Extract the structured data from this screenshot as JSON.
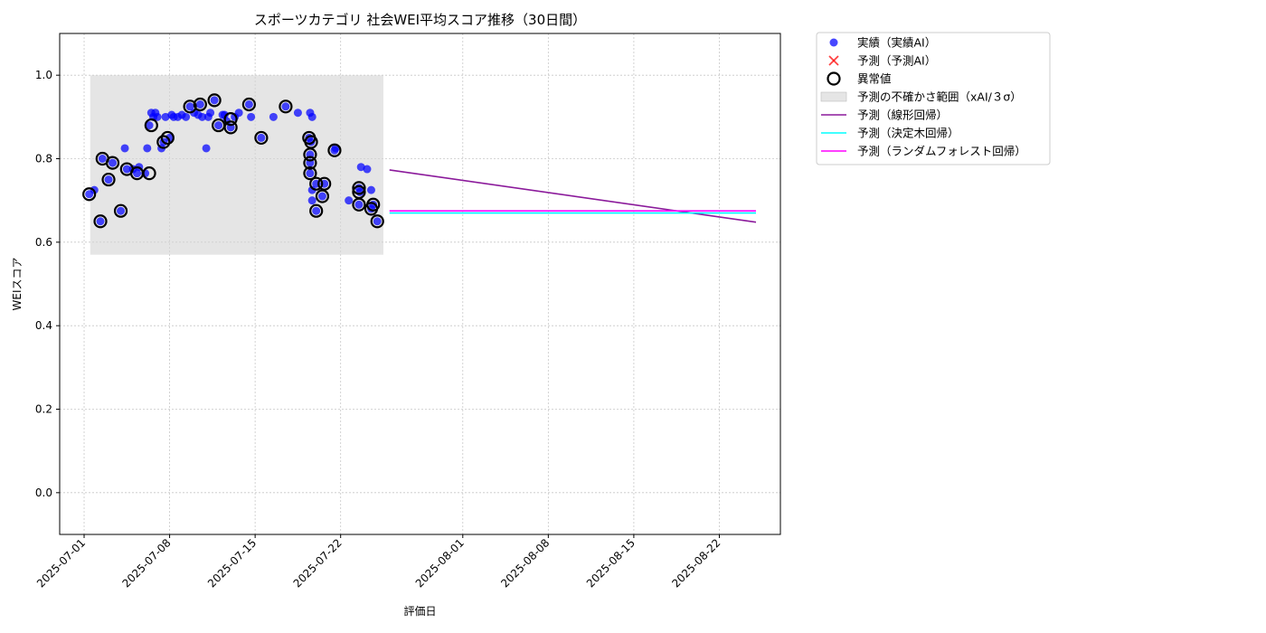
{
  "chart_data": {
    "type": "scatter",
    "title": "スポーツカテゴリ 社会WEI平均スコア推移（30日間）",
    "xlabel": "評価日",
    "ylabel": "WEIスコア",
    "xlim": [
      "2025-06-29",
      "2025-08-27"
    ],
    "ylim": [
      -0.1,
      1.1
    ],
    "yticks": [
      0.0,
      0.2,
      0.4,
      0.6,
      0.8,
      1.0
    ],
    "xticks": [
      "2025-07-01",
      "2025-07-08",
      "2025-07-15",
      "2025-07-22",
      "2025-08-01",
      "2025-08-08",
      "2025-08-15",
      "2025-08-22"
    ],
    "grid": true,
    "legend_position": "outside-top-right",
    "colors": {
      "actual": "#0000ff",
      "predicted": "#ff0000",
      "anomaly": "#000000",
      "band": "#d3d3d3",
      "linear": "#8b1a9b",
      "tree": "#00ffff",
      "forest": "#ff00ff"
    },
    "uncertainty_band": {
      "x_start": "2025-07-01 12:00",
      "x_end": "2025-07-25 12:00",
      "y_low": 0.57,
      "y_high": 1.0
    },
    "actual_points": [
      {
        "x": "2025-07-01 10:00",
        "y": 0.715
      },
      {
        "x": "2025-07-01 20:00",
        "y": 0.725
      },
      {
        "x": "2025-07-02 08:00",
        "y": 0.65
      },
      {
        "x": "2025-07-02 12:00",
        "y": 0.8
      },
      {
        "x": "2025-07-03 00:00",
        "y": 0.75
      },
      {
        "x": "2025-07-03 08:00",
        "y": 0.79
      },
      {
        "x": "2025-07-04 00:00",
        "y": 0.675
      },
      {
        "x": "2025-07-04 08:00",
        "y": 0.825
      },
      {
        "x": "2025-07-04 12:00",
        "y": 0.775
      },
      {
        "x": "2025-07-05 00:00",
        "y": 0.775
      },
      {
        "x": "2025-07-05 08:00",
        "y": 0.765
      },
      {
        "x": "2025-07-05 12:00",
        "y": 0.78
      },
      {
        "x": "2025-07-06 00:00",
        "y": 0.765
      },
      {
        "x": "2025-07-06 04:00",
        "y": 0.825
      },
      {
        "x": "2025-07-06 08:00",
        "y": 0.88
      },
      {
        "x": "2025-07-06 12:00",
        "y": 0.91
      },
      {
        "x": "2025-07-06 16:00",
        "y": 0.9
      },
      {
        "x": "2025-07-06 20:00",
        "y": 0.91
      },
      {
        "x": "2025-07-07 00:00",
        "y": 0.9
      },
      {
        "x": "2025-07-07 08:00",
        "y": 0.825
      },
      {
        "x": "2025-07-07 12:00",
        "y": 0.84
      },
      {
        "x": "2025-07-07 16:00",
        "y": 0.9
      },
      {
        "x": "2025-07-08 00:00",
        "y": 0.85
      },
      {
        "x": "2025-07-08 04:00",
        "y": 0.905
      },
      {
        "x": "2025-07-08 08:00",
        "y": 0.9
      },
      {
        "x": "2025-07-08 16:00",
        "y": 0.9
      },
      {
        "x": "2025-07-09 00:00",
        "y": 0.905
      },
      {
        "x": "2025-07-09 08:00",
        "y": 0.9
      },
      {
        "x": "2025-07-09 16:00",
        "y": 0.925
      },
      {
        "x": "2025-07-10 00:00",
        "y": 0.91
      },
      {
        "x": "2025-07-10 08:00",
        "y": 0.905
      },
      {
        "x": "2025-07-10 12:00",
        "y": 0.93
      },
      {
        "x": "2025-07-10 16:00",
        "y": 0.9
      },
      {
        "x": "2025-07-11 00:00",
        "y": 0.825
      },
      {
        "x": "2025-07-11 04:00",
        "y": 0.9
      },
      {
        "x": "2025-07-11 08:00",
        "y": 0.91
      },
      {
        "x": "2025-07-11 16:00",
        "y": 0.94
      },
      {
        "x": "2025-07-12 00:00",
        "y": 0.88
      },
      {
        "x": "2025-07-12 08:00",
        "y": 0.905
      },
      {
        "x": "2025-07-12 12:00",
        "y": 0.905
      },
      {
        "x": "2025-07-12 16:00",
        "y": 0.89
      },
      {
        "x": "2025-07-13 00:00",
        "y": 0.875
      },
      {
        "x": "2025-07-13 08:00",
        "y": 0.9
      },
      {
        "x": "2025-07-13 16:00",
        "y": 0.91
      },
      {
        "x": "2025-07-14 12:00",
        "y": 0.93
      },
      {
        "x": "2025-07-14 16:00",
        "y": 0.9
      },
      {
        "x": "2025-07-15 12:00",
        "y": 0.85
      },
      {
        "x": "2025-07-16 12:00",
        "y": 0.9
      },
      {
        "x": "2025-07-17 12:00",
        "y": 0.925
      },
      {
        "x": "2025-07-18 12:00",
        "y": 0.91
      },
      {
        "x": "2025-07-19 10:00",
        "y": 0.85
      },
      {
        "x": "2025-07-19 12:00",
        "y": 0.91
      },
      {
        "x": "2025-07-19 14:00",
        "y": 0.84
      },
      {
        "x": "2025-07-19 16:00",
        "y": 0.9
      },
      {
        "x": "2025-07-19 12:00",
        "y": 0.81
      },
      {
        "x": "2025-07-19 12:00",
        "y": 0.79
      },
      {
        "x": "2025-07-19 12:00",
        "y": 0.765
      },
      {
        "x": "2025-07-19 16:00",
        "y": 0.725
      },
      {
        "x": "2025-07-19 16:00",
        "y": 0.7
      },
      {
        "x": "2025-07-20 00:00",
        "y": 0.74
      },
      {
        "x": "2025-07-20 00:00",
        "y": 0.675
      },
      {
        "x": "2025-07-20 12:00",
        "y": 0.71
      },
      {
        "x": "2025-07-20 16:00",
        "y": 0.74
      },
      {
        "x": "2025-07-21 12:00",
        "y": 0.82
      },
      {
        "x": "2025-07-21 14:00",
        "y": 0.825
      },
      {
        "x": "2025-07-22 16:00",
        "y": 0.7
      },
      {
        "x": "2025-07-23 12:00",
        "y": 0.73
      },
      {
        "x": "2025-07-23 14:00",
        "y": 0.72
      },
      {
        "x": "2025-07-23 16:00",
        "y": 0.78
      },
      {
        "x": "2025-07-23 12:00",
        "y": 0.69
      },
      {
        "x": "2025-07-24 04:00",
        "y": 0.775
      },
      {
        "x": "2025-07-24 12:00",
        "y": 0.725
      },
      {
        "x": "2025-07-24 12:00",
        "y": 0.68
      },
      {
        "x": "2025-07-24 16:00",
        "y": 0.69
      },
      {
        "x": "2025-07-25 00:00",
        "y": 0.65
      }
    ],
    "anomaly_points": [
      {
        "x": "2025-07-01 10:00",
        "y": 0.715
      },
      {
        "x": "2025-07-02 08:00",
        "y": 0.65
      },
      {
        "x": "2025-07-02 12:00",
        "y": 0.8
      },
      {
        "x": "2025-07-03 00:00",
        "y": 0.75
      },
      {
        "x": "2025-07-03 08:00",
        "y": 0.79
      },
      {
        "x": "2025-07-04 00:00",
        "y": 0.675
      },
      {
        "x": "2025-07-04 12:00",
        "y": 0.775
      },
      {
        "x": "2025-07-05 08:00",
        "y": 0.765
      },
      {
        "x": "2025-07-06 08:00",
        "y": 0.765
      },
      {
        "x": "2025-07-06 12:00",
        "y": 0.88
      },
      {
        "x": "2025-07-07 12:00",
        "y": 0.84
      },
      {
        "x": "2025-07-07 20:00",
        "y": 0.85
      },
      {
        "x": "2025-07-09 16:00",
        "y": 0.925
      },
      {
        "x": "2025-07-10 12:00",
        "y": 0.93
      },
      {
        "x": "2025-07-11 16:00",
        "y": 0.94
      },
      {
        "x": "2025-07-12 00:00",
        "y": 0.88
      },
      {
        "x": "2025-07-13 00:00",
        "y": 0.875
      },
      {
        "x": "2025-07-13 00:00",
        "y": 0.895
      },
      {
        "x": "2025-07-14 12:00",
        "y": 0.93
      },
      {
        "x": "2025-07-15 12:00",
        "y": 0.85
      },
      {
        "x": "2025-07-17 12:00",
        "y": 0.925
      },
      {
        "x": "2025-07-19 10:00",
        "y": 0.85
      },
      {
        "x": "2025-07-19 14:00",
        "y": 0.84
      },
      {
        "x": "2025-07-19 12:00",
        "y": 0.81
      },
      {
        "x": "2025-07-19 12:00",
        "y": 0.79
      },
      {
        "x": "2025-07-19 12:00",
        "y": 0.765
      },
      {
        "x": "2025-07-20 00:00",
        "y": 0.74
      },
      {
        "x": "2025-07-20 00:00",
        "y": 0.675
      },
      {
        "x": "2025-07-20 12:00",
        "y": 0.71
      },
      {
        "x": "2025-07-20 16:00",
        "y": 0.74
      },
      {
        "x": "2025-07-21 12:00",
        "y": 0.82
      },
      {
        "x": "2025-07-23 12:00",
        "y": 0.73
      },
      {
        "x": "2025-07-23 12:00",
        "y": 0.72
      },
      {
        "x": "2025-07-23 12:00",
        "y": 0.69
      },
      {
        "x": "2025-07-24 12:00",
        "y": 0.68
      },
      {
        "x": "2025-07-24 16:00",
        "y": 0.69
      },
      {
        "x": "2025-07-25 00:00",
        "y": 0.65
      }
    ],
    "series": [
      {
        "name": "予測（線形回帰）",
        "key": "linear",
        "x": [
          "2025-07-26",
          "2025-08-25"
        ],
        "y": [
          0.773,
          0.648
        ]
      },
      {
        "name": "予測（決定木回帰）",
        "key": "tree",
        "x": [
          "2025-07-26",
          "2025-08-25"
        ],
        "y": [
          0.67,
          0.67
        ]
      },
      {
        "name": "予測（ランダムフォレスト回帰）",
        "key": "forest",
        "x": [
          "2025-07-26",
          "2025-08-25"
        ],
        "y": [
          0.675,
          0.675
        ]
      }
    ],
    "legend": [
      {
        "label": "実績（実績AI）",
        "kind": "dot"
      },
      {
        "label": "予測（予測AI）",
        "kind": "cross"
      },
      {
        "label": "異常値",
        "kind": "ring"
      },
      {
        "label": "予測の不確かさ範囲（xAI/３σ）",
        "kind": "band"
      },
      {
        "label": "予測（線形回帰）",
        "kind": "line-linear"
      },
      {
        "label": "予測（決定木回帰）",
        "kind": "line-tree"
      },
      {
        "label": "予測（ランダムフォレスト回帰）",
        "kind": "line-forest"
      }
    ]
  }
}
